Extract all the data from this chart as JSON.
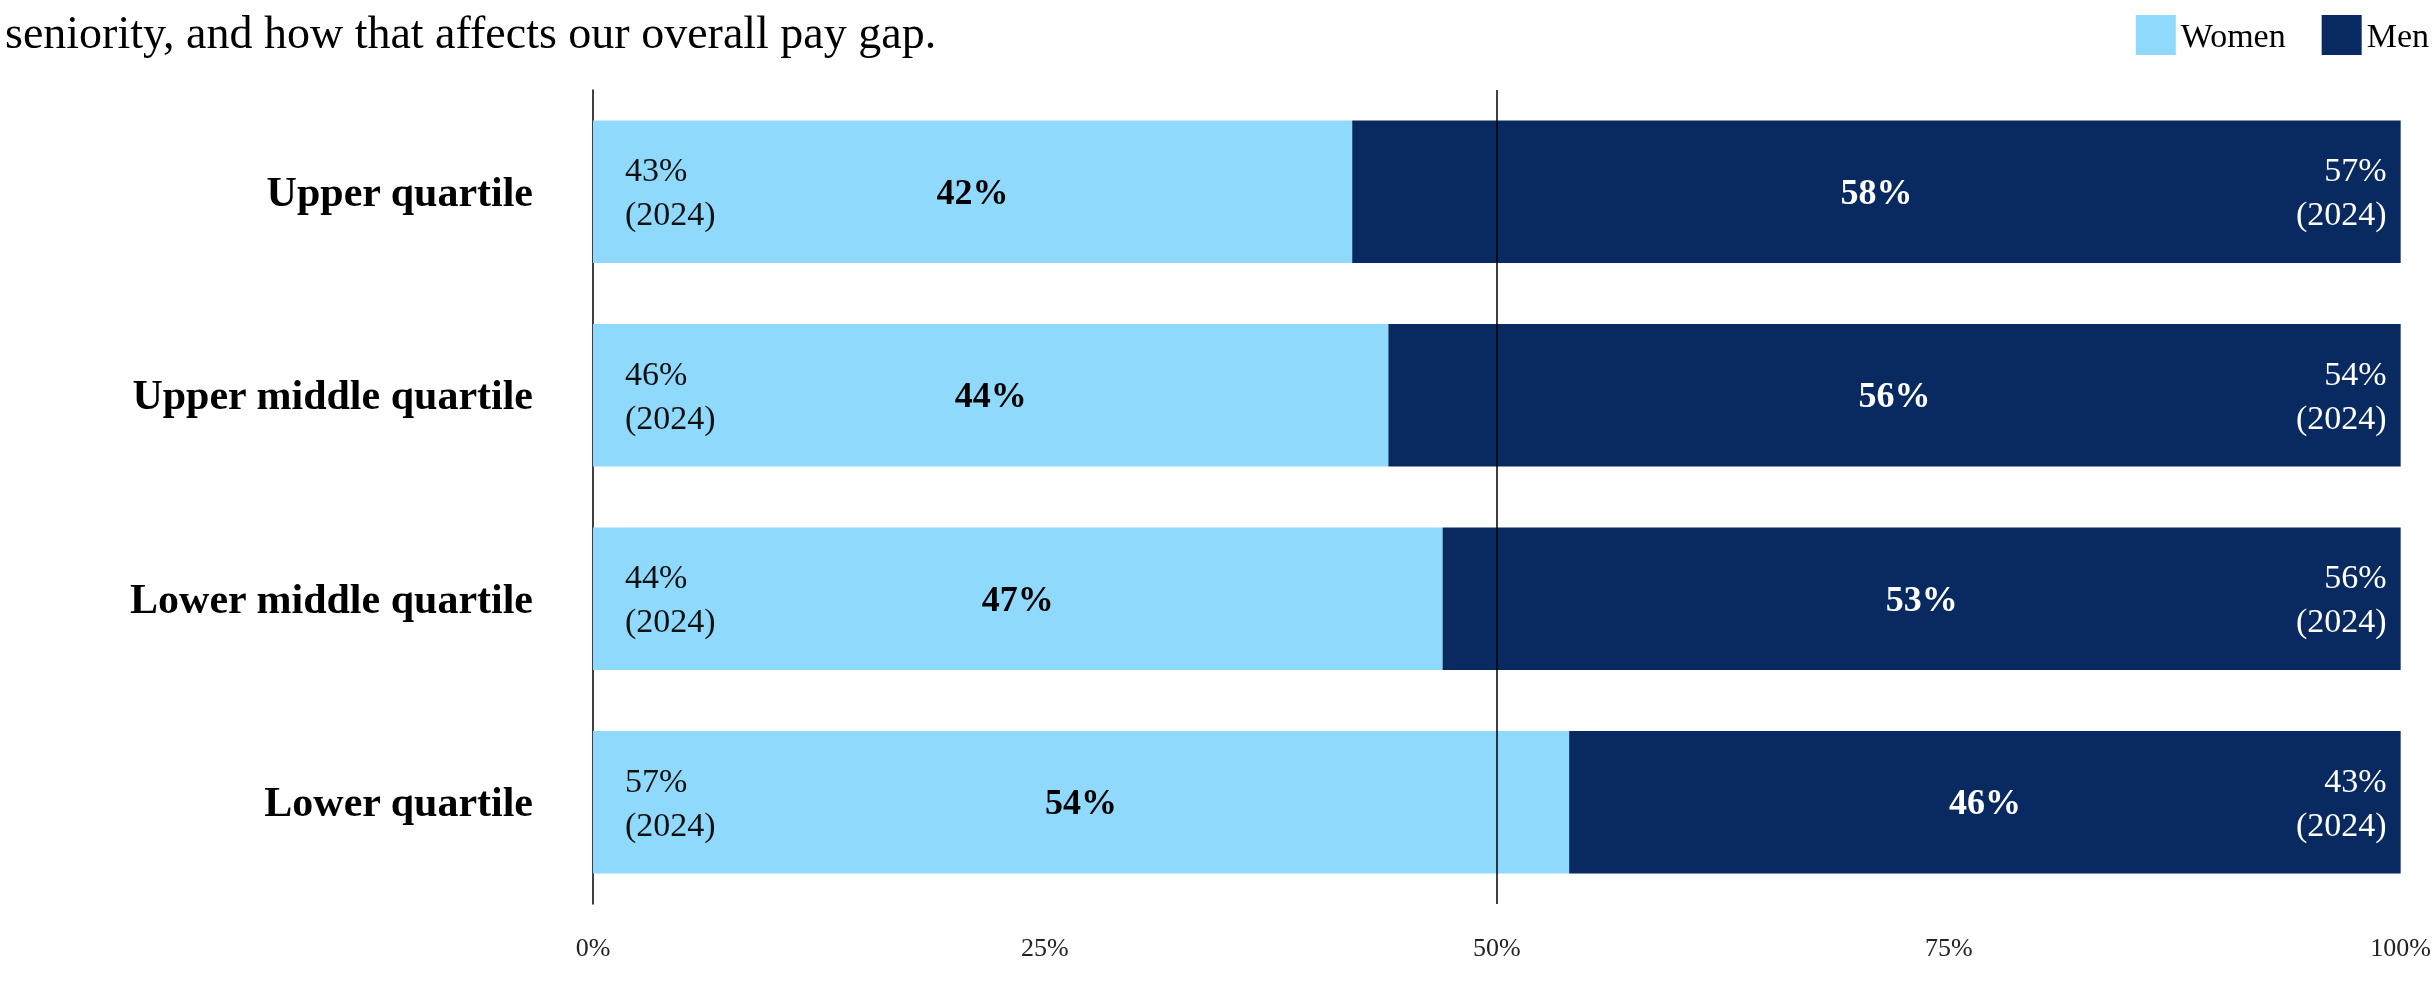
{
  "chart_data": {
    "type": "bar",
    "orientation": "horizontal",
    "stacked": true,
    "subtitle": "seniority, and how that affects our overall pay gap.",
    "categories": [
      "Upper quartile",
      "Upper middle quartile",
      "Lower middle quartile",
      "Lower quartile"
    ],
    "series": [
      {
        "name": "Women",
        "color": "#8fdafc",
        "values": [
          42,
          44,
          47,
          54
        ],
        "value_labels": [
          "42%",
          "44%",
          "47%",
          "54%"
        ]
      },
      {
        "name": "Men",
        "color": "#082a61",
        "values": [
          58,
          56,
          53,
          46
        ],
        "value_labels": [
          "58%",
          "56%",
          "53%",
          "46%"
        ]
      }
    ],
    "xlim": [
      0,
      100
    ],
    "xticks": [
      {
        "value": 0,
        "label": "0%"
      },
      {
        "value": 25,
        "label": "25%"
      },
      {
        "value": 50,
        "label": "50%"
      },
      {
        "value": 75,
        "label": "75%"
      },
      {
        "value": 100,
        "label": "100%"
      }
    ],
    "ref_lines": [
      {
        "axis": "x",
        "value": 50,
        "color": "#000000"
      }
    ],
    "grid": false,
    "legend": "top right",
    "annotations": [
      "43% (2024)",
      "57% (2024)",
      "46% (2024)",
      "54% (2024)",
      "44% (2024)",
      "56% (2024)",
      "57% (2024)",
      "43% (2024)"
    ]
  }
}
